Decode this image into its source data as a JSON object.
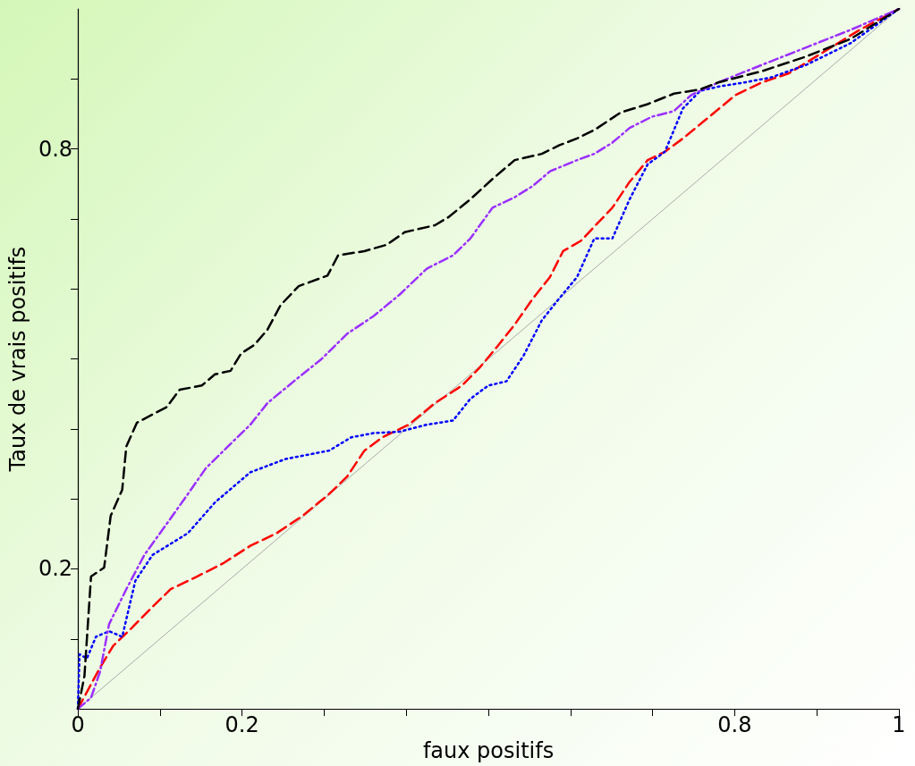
{
  "chart_data": {
    "type": "line",
    "xlabel": "faux positifs",
    "ylabel": "Taux de vrais positifs",
    "xlim": [
      0,
      1
    ],
    "ylim": [
      0,
      1
    ],
    "xticks": [
      0,
      {
        "value": 0.1,
        "label": null
      },
      0.2,
      {
        "value": 0.3,
        "label": null
      },
      {
        "value": 0.4,
        "label": null
      },
      {
        "value": 0.5,
        "label": null
      },
      {
        "value": 0.6,
        "label": null
      },
      {
        "value": 0.7,
        "label": null
      },
      0.8,
      {
        "value": 0.9,
        "label": null
      },
      1
    ],
    "yticks": [
      {
        "value": 0.1,
        "label": null
      },
      0.2,
      {
        "value": 0.3,
        "label": null
      },
      {
        "value": 0.4,
        "label": null
      },
      {
        "value": 0.5,
        "label": null
      },
      {
        "value": 0.6,
        "label": null
      },
      {
        "value": 0.7,
        "label": null
      },
      0.8,
      {
        "value": 0.9,
        "label": null
      }
    ],
    "grid": false,
    "marker": "none",
    "series": [
      {
        "color": "#aaaaaa",
        "line_style": "solid",
        "x": [
          0,
          1
        ],
        "values": [
          0,
          1
        ]
      },
      {
        "color": "#ff0000",
        "line_style": "dashed",
        "x": [
          0,
          0.016,
          0.027,
          0.043,
          0.065,
          0.091,
          0.113,
          0.145,
          0.177,
          0.21,
          0.242,
          0.274,
          0.306,
          0.328,
          0.349,
          0.371,
          0.403,
          0.435,
          0.468,
          0.489,
          0.511,
          0.532,
          0.554,
          0.575,
          0.591,
          0.613,
          0.629,
          0.651,
          0.672,
          0.694,
          0.715,
          0.737,
          0.769,
          0.801,
          0.833,
          0.866,
          0.909,
          0.952,
          1
        ],
        "values": [
          0,
          0.035,
          0.059,
          0.09,
          0.115,
          0.146,
          0.171,
          0.189,
          0.208,
          0.233,
          0.251,
          0.276,
          0.307,
          0.332,
          0.369,
          0.388,
          0.406,
          0.437,
          0.462,
          0.487,
          0.518,
          0.549,
          0.586,
          0.617,
          0.654,
          0.669,
          0.689,
          0.716,
          0.753,
          0.784,
          0.796,
          0.815,
          0.846,
          0.877,
          0.895,
          0.908,
          0.939,
          0.97,
          1
        ]
      },
      {
        "color": "#0000ff",
        "line_style": "dotted",
        "x": [
          0,
          0.002,
          0.011,
          0.022,
          0.038,
          0.054,
          0.07,
          0.091,
          0.134,
          0.167,
          0.21,
          0.253,
          0.306,
          0.333,
          0.36,
          0.392,
          0.425,
          0.457,
          0.478,
          0.5,
          0.522,
          0.543,
          0.565,
          0.586,
          0.608,
          0.629,
          0.651,
          0.672,
          0.694,
          0.715,
          0.737,
          0.758,
          0.78,
          0.812,
          0.844,
          0.887,
          0.941,
          1
        ],
        "values": [
          0,
          0.078,
          0.072,
          0.103,
          0.111,
          0.103,
          0.183,
          0.22,
          0.251,
          0.295,
          0.338,
          0.357,
          0.369,
          0.388,
          0.394,
          0.396,
          0.406,
          0.412,
          0.443,
          0.462,
          0.468,
          0.505,
          0.555,
          0.586,
          0.617,
          0.672,
          0.672,
          0.728,
          0.778,
          0.796,
          0.858,
          0.883,
          0.889,
          0.895,
          0.902,
          0.92,
          0.951,
          1
        ]
      },
      {
        "color": "#9b30ff",
        "line_style": "dashdot",
        "x": [
          0,
          0.016,
          0.027,
          0.038,
          0.059,
          0.081,
          0.108,
          0.134,
          0.156,
          0.188,
          0.21,
          0.231,
          0.263,
          0.296,
          0.328,
          0.36,
          0.392,
          0.425,
          0.457,
          0.478,
          0.505,
          0.532,
          0.554,
          0.575,
          0.608,
          0.629,
          0.651,
          0.672,
          0.699,
          0.726,
          0.747,
          0.78,
          0.833,
          0.887,
          0.941,
          1
        ],
        "values": [
          0,
          0.016,
          0.053,
          0.121,
          0.171,
          0.22,
          0.264,
          0.307,
          0.344,
          0.381,
          0.406,
          0.437,
          0.468,
          0.499,
          0.536,
          0.561,
          0.592,
          0.629,
          0.648,
          0.672,
          0.716,
          0.731,
          0.747,
          0.768,
          0.784,
          0.793,
          0.809,
          0.83,
          0.846,
          0.854,
          0.877,
          0.895,
          0.92,
          0.945,
          0.97,
          1
        ]
      },
      {
        "color": "#000000",
        "line_style": "dashed",
        "x": [
          0,
          0.008,
          0.016,
          0.032,
          0.04,
          0.054,
          0.059,
          0.072,
          0.108,
          0.124,
          0.151,
          0.167,
          0.186,
          0.199,
          0.215,
          0.231,
          0.247,
          0.269,
          0.304,
          0.317,
          0.349,
          0.376,
          0.398,
          0.435,
          0.452,
          0.478,
          0.505,
          0.532,
          0.565,
          0.586,
          0.608,
          0.629,
          0.661,
          0.694,
          0.726,
          0.758,
          0.78,
          0.833,
          0.887,
          0.941,
          1
        ],
        "values": [
          0,
          0.047,
          0.189,
          0.202,
          0.276,
          0.313,
          0.375,
          0.409,
          0.431,
          0.456,
          0.462,
          0.478,
          0.483,
          0.508,
          0.52,
          0.542,
          0.577,
          0.604,
          0.619,
          0.648,
          0.654,
          0.663,
          0.681,
          0.691,
          0.703,
          0.728,
          0.757,
          0.784,
          0.793,
          0.805,
          0.815,
          0.827,
          0.852,
          0.864,
          0.879,
          0.885,
          0.895,
          0.911,
          0.932,
          0.957,
          1
        ]
      }
    ]
  }
}
